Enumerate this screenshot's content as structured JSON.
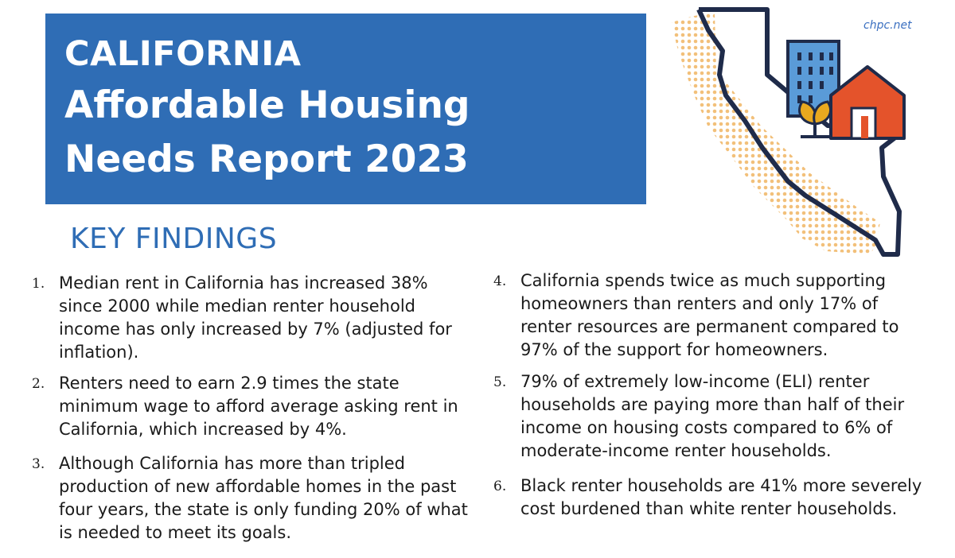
{
  "header": {
    "title_line1": "CALIFORNIA",
    "title_line2": "Affordable Housing",
    "title_line3": "Needs Report 2023",
    "website": "chpc.net"
  },
  "section_heading": "KEY FINDINGS",
  "findings": [
    {
      "number": "1.",
      "text": "Median rent in California has increased 38% since 2000 while median renter household income has only increased by 7% (adjusted for inflation)."
    },
    {
      "number": "2.",
      "text": "Renters need to earn 2.9 times the state minimum wage to afford average asking rent in California, which increased by 4%."
    },
    {
      "number": "3.",
      "text": "Although California has more than tripled production of new affordable homes in the past four years, the state is only funding 20% of what is needed to meet its goals."
    },
    {
      "number": "4.",
      "text": "California spends twice as much supporting homeowners than renters and only 17% of renter resources are permanent compared to 97% of the support for homeowners."
    },
    {
      "number": "5.",
      "text": "79% of extremely low-income (ELI) renter households are paying more than half of their income on housing costs compared to 6% of moderate-income renter households."
    },
    {
      "number": "6.",
      "text": "Black renter households are 41% more severely cost burdened than white renter households."
    }
  ],
  "colors": {
    "banner": "#2f6db5",
    "heading": "#2f6db5",
    "map_dots": "#f2c07a",
    "map_outline": "#1f2b4a",
    "building": "#5a9bd8",
    "house": "#e4532b",
    "plant": "#e9a91f"
  }
}
